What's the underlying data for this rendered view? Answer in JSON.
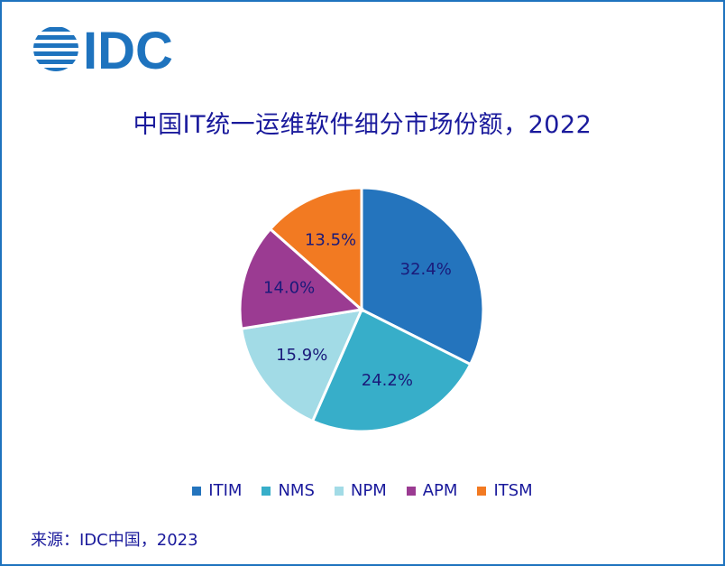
{
  "logo_text": "IDC",
  "source": "来源：IDC中国，2023",
  "colors": {
    "frame": "#1e73be",
    "logo": "#1e73be",
    "text": "#1a1a9c"
  },
  "chart_data": {
    "type": "pie",
    "title": "中国IT统一运维软件细分市场份额，2022",
    "categories": [
      "ITIM",
      "NMS",
      "NPM",
      "APM",
      "ITSM"
    ],
    "values": [
      32.4,
      24.2,
      15.9,
      14.0,
      13.5
    ],
    "labels": [
      "32.4%",
      "24.2%",
      "15.9%",
      "14.0%",
      "13.5%"
    ],
    "colors": [
      "#2474bd",
      "#37aec9",
      "#a2dbe6",
      "#9b3b92",
      "#f27a22"
    ],
    "start": "12 o'clock",
    "direction": "clockwise",
    "legend": "bottom"
  }
}
